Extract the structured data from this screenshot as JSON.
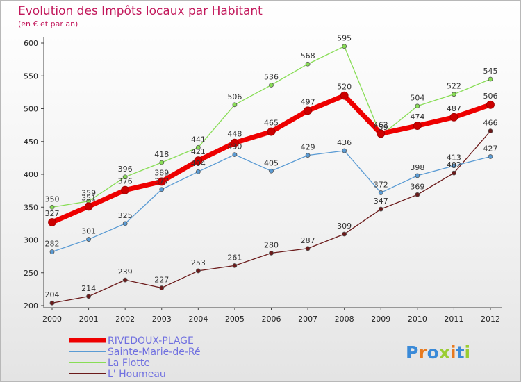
{
  "chart_data": {
    "type": "line",
    "title": "Evolution des Impôts locaux par Habitant",
    "subtitle": "(en € et par an)",
    "xlabel": "",
    "ylabel": "",
    "x": [
      "2000",
      "2001",
      "2002",
      "2003",
      "2004",
      "2005",
      "2006",
      "2007",
      "2008",
      "2009",
      "2010",
      "2011",
      "2012"
    ],
    "ylim": [
      200,
      600
    ],
    "yticks": [
      "200",
      "250",
      "300",
      "350",
      "400",
      "450",
      "500",
      "550",
      "600"
    ],
    "grid": false,
    "legend_position": "bottom-left",
    "series": [
      {
        "name": "RIVEDOUX-PLAGE",
        "color": "#ee0000",
        "values": [
          327,
          351,
          376,
          389,
          421,
          448,
          465,
          497,
          520,
          462,
          474,
          487,
          506
        ]
      },
      {
        "name": "Sainte-Marie-de-Ré",
        "color": "#5a9bd4",
        "values": [
          282,
          301,
          325,
          377,
          404,
          430,
          405,
          429,
          436,
          372,
          398,
          413,
          427
        ]
      },
      {
        "name": "La Flotte",
        "color": "#88dd55",
        "values": [
          350,
          359,
          396,
          418,
          441,
          506,
          536,
          568,
          595,
          459,
          504,
          522,
          545
        ]
      },
      {
        "name": "L' Houmeau",
        "color": "#6b1a1a",
        "values": [
          204,
          214,
          239,
          227,
          253,
          261,
          280,
          287,
          309,
          347,
          369,
          402,
          466
        ]
      }
    ]
  },
  "logo": {
    "letters": [
      "P",
      "r",
      "o",
      "x",
      "i",
      "t",
      "i"
    ],
    "colors": [
      "#3a8ad8",
      "#e87a1e",
      "#3a8ad8",
      "#9acd32",
      "#e87a1e",
      "#3a8ad8",
      "#9acd32"
    ]
  }
}
